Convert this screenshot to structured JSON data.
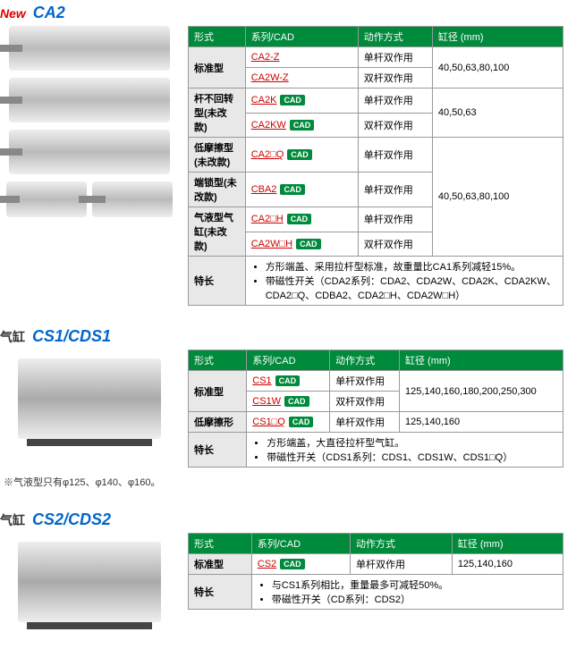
{
  "labels": {
    "form": "形式",
    "series_cad": "系列/CAD",
    "action": "动作方式",
    "bore": "缸径 (mm)",
    "features": "特长",
    "cad_badge": "CAD",
    "cylinder_prefix": "气缸"
  },
  "section1": {
    "new": "New",
    "name": "CA2",
    "rows": [
      {
        "form": "标准型",
        "series": [
          {
            "code": "CA2-Z",
            "cad": false
          },
          {
            "code": "CA2W-Z",
            "cad": false
          }
        ],
        "action": [
          "单杆双作用",
          "双杆双作用"
        ],
        "bore": "40,50,63,80,100"
      },
      {
        "form": "杆不回转型(未改款)",
        "series": [
          {
            "code": "CA2K",
            "cad": true
          },
          {
            "code": "CA2KW",
            "cad": true
          }
        ],
        "action": [
          "单杆双作用",
          "双杆双作用"
        ],
        "bore": "40,50,63"
      },
      {
        "form": "低摩擦型(未改款)",
        "series": [
          {
            "code": "CA2□Q",
            "cad": true
          }
        ],
        "action": [
          "单杆双作用"
        ],
        "bore_rowspan": true
      },
      {
        "form": "端锁型(未改款)",
        "series": [
          {
            "code": "CBA2",
            "cad": true
          }
        ],
        "action": [
          "单杆双作用"
        ],
        "bore": "40,50,63,80,100"
      },
      {
        "form": "气液型气缸(未改款)",
        "series": [
          {
            "code": "CA2□H",
            "cad": true
          },
          {
            "code": "CA2W□H",
            "cad": true
          }
        ],
        "action": [
          "单杆双作用",
          "双杆双作用"
        ],
        "bore_rowspan": true
      }
    ],
    "features": [
      "方形端盖、采用拉杆型标准，故重量比CA1系列减轻15%。",
      "带磁性开关（CDA2系列：CDA2、CDA2W、CDA2K、CDA2KW、CDA2□Q、CDBA2、CDA2□H、CDA2W□H）"
    ]
  },
  "section2": {
    "name": "CS1/CDS1",
    "rows": [
      {
        "form": "标准型",
        "series": [
          {
            "code": "CS1",
            "cad": true
          },
          {
            "code": "CS1W",
            "cad": true
          }
        ],
        "action": [
          "单杆双作用",
          "双杆双作用"
        ],
        "bore": "125,140,160,180,200,250,300"
      },
      {
        "form": "低摩擦形",
        "series": [
          {
            "code": "CS1□Q",
            "cad": true
          }
        ],
        "action": [
          "单杆双作用"
        ],
        "bore": "125,140,160"
      }
    ],
    "features": [
      "方形端盖，大直径拉杆型气缸。",
      "带磁性开关（CDS1系列：CDS1、CDS1W、CDS1□Q）"
    ],
    "note": "※气液型只有φ125、φ140、φ160。"
  },
  "section3": {
    "name": "CS2/CDS2",
    "rows": [
      {
        "form": "标准型",
        "series": [
          {
            "code": "CS2",
            "cad": true
          }
        ],
        "action": [
          "单杆双作用"
        ],
        "bore": "125,140,160"
      }
    ],
    "features": [
      "与CS1系列相比，重量最多可减轻50%。",
      "带磁性开关（CD系列：CDS2）"
    ]
  }
}
